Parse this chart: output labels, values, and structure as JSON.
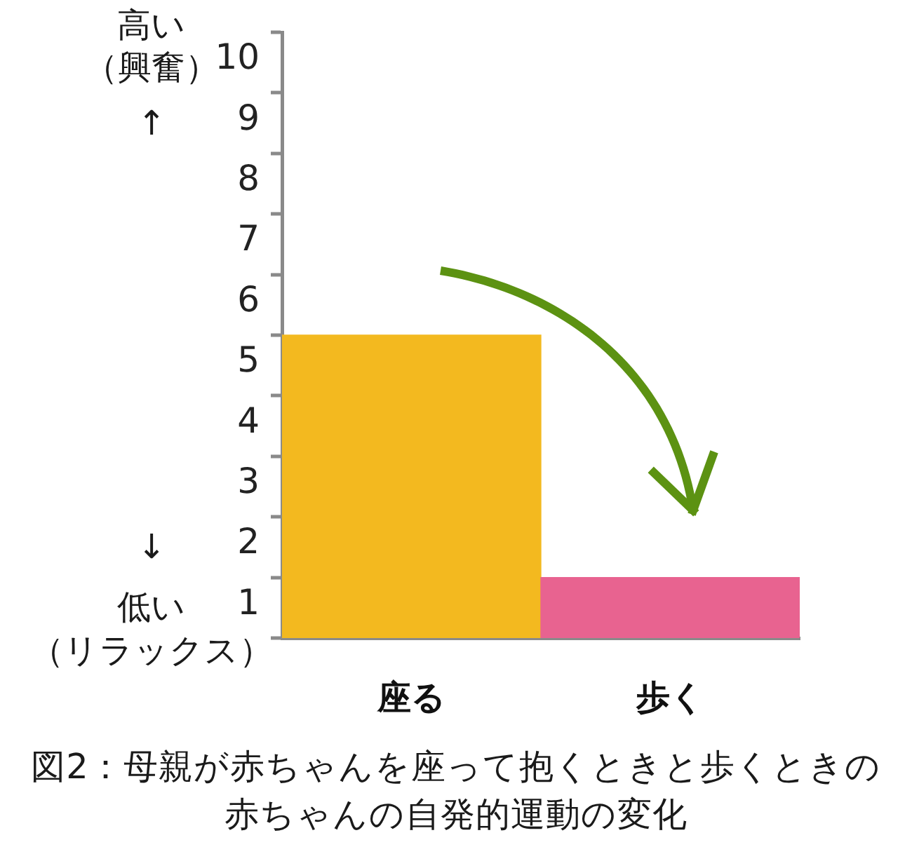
{
  "chart_data": {
    "type": "bar",
    "title": "図2：母親が赤ちゃんを座って抱くときと歩くときの赤ちゃんの自発的運動の変化",
    "categories": [
      "座る",
      "歩く"
    ],
    "values": [
      5,
      1
    ],
    "colors": [
      "#f3b91f",
      "#e86390"
    ],
    "ylim": [
      0,
      10
    ],
    "yticks": [
      {
        "value": 0,
        "label": null
      },
      1,
      2,
      3,
      4,
      5,
      6,
      7,
      8,
      9,
      10
    ],
    "annotations": [
      "高い",
      "（興奮）",
      "↑",
      "↓",
      "低い",
      "（リラックス）"
    ],
    "grid": false,
    "legend": false
  }
}
